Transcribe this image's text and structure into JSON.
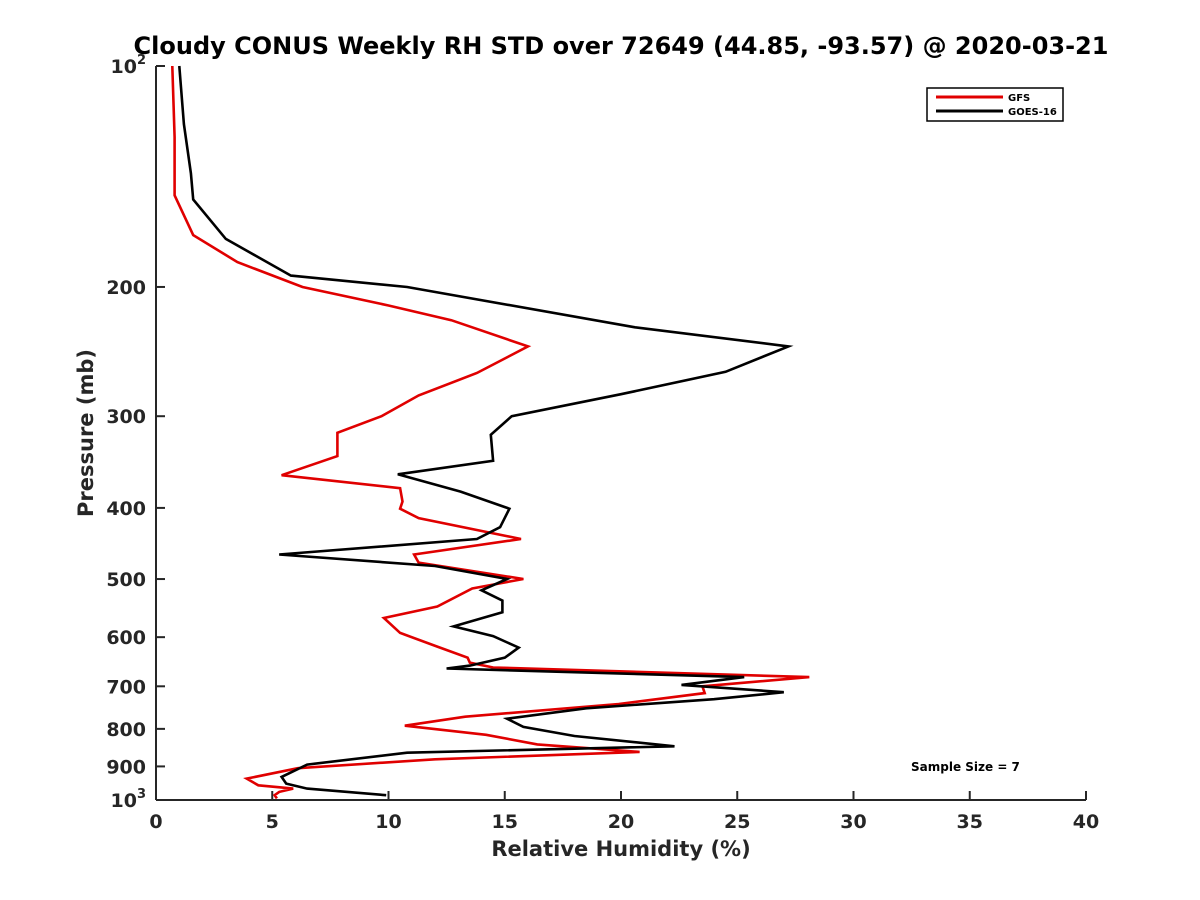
{
  "chart_data": {
    "type": "line",
    "title": "Cloudy CONUS Weekly RH STD over 72649 (44.85, -93.57) @ 2020-03-21",
    "xlabel": "Relative Humidity (%)",
    "ylabel": "Pressure (mb)",
    "xlim": [
      0,
      40
    ],
    "ylim": [
      100,
      1000
    ],
    "y_scale": "log",
    "y_reversed": true,
    "x_ticks": [
      "0",
      "5",
      "10",
      "15",
      "20",
      "25",
      "30",
      "35",
      "40"
    ],
    "y_ticks": [
      {
        "value": 100,
        "label": "10",
        "sup": "2"
      },
      {
        "value": 200,
        "label": "200",
        "sup": ""
      },
      {
        "value": 300,
        "label": "300",
        "sup": ""
      },
      {
        "value": 400,
        "label": "400",
        "sup": ""
      },
      {
        "value": 500,
        "label": "500",
        "sup": ""
      },
      {
        "value": 600,
        "label": "600",
        "sup": ""
      },
      {
        "value": 700,
        "label": "700",
        "sup": ""
      },
      {
        "value": 800,
        "label": "800",
        "sup": ""
      },
      {
        "value": 900,
        "label": "900",
        "sup": ""
      },
      {
        "value": 1000,
        "label": "10",
        "sup": "3"
      }
    ],
    "grid": false,
    "legend_position": "top-right",
    "annotation": "Sample Size = 7",
    "series": [
      {
        "name": "GFS",
        "color": "#e00000",
        "points": [
          [
            0.7,
            100
          ],
          [
            0.8,
            125
          ],
          [
            0.8,
            150
          ],
          [
            1.6,
            170
          ],
          [
            3.5,
            185
          ],
          [
            6.3,
            200
          ],
          [
            10,
            212
          ],
          [
            12.7,
            222
          ],
          [
            16,
            241
          ],
          [
            13.8,
            262
          ],
          [
            11.3,
            281
          ],
          [
            9.7,
            300
          ],
          [
            7.8,
            316
          ],
          [
            7.8,
            340
          ],
          [
            5.4,
            361
          ],
          [
            10.5,
            376
          ],
          [
            10.6,
            392
          ],
          [
            10.5,
            401
          ],
          [
            11.3,
            413
          ],
          [
            15.7,
            441
          ],
          [
            11.1,
            463
          ],
          [
            11.3,
            475
          ],
          [
            15.8,
            500
          ],
          [
            13.6,
            515
          ],
          [
            12.1,
            545
          ],
          [
            9.8,
            565
          ],
          [
            10.5,
            592
          ],
          [
            12.1,
            618
          ],
          [
            13.4,
            640
          ],
          [
            13.5,
            650
          ],
          [
            14.5,
            660
          ],
          [
            28.1,
            680
          ],
          [
            23.5,
            700
          ],
          [
            23.6,
            715
          ],
          [
            19.9,
            740
          ],
          [
            13.3,
            770
          ],
          [
            10.7,
            792
          ],
          [
            14.2,
            815
          ],
          [
            16.4,
            840
          ],
          [
            20.8,
            860
          ],
          [
            12,
            880
          ],
          [
            6.1,
            905
          ],
          [
            3.9,
            935
          ],
          [
            4.4,
            955
          ],
          [
            5.9,
            965
          ],
          [
            5.3,
            975
          ],
          [
            5.1,
            985
          ],
          [
            5.2,
            995
          ]
        ]
      },
      {
        "name": "GOES-16",
        "color": "#000000",
        "points": [
          [
            1.0,
            100
          ],
          [
            1.2,
            120
          ],
          [
            1.5,
            140
          ],
          [
            1.6,
            152
          ],
          [
            3.0,
            172
          ],
          [
            5.8,
            193
          ],
          [
            10.8,
            200
          ],
          [
            20.6,
            227
          ],
          [
            27.2,
            241
          ],
          [
            24.5,
            261
          ],
          [
            20,
            280
          ],
          [
            15.3,
            300
          ],
          [
            14.4,
            318
          ],
          [
            14.5,
            345
          ],
          [
            10.4,
            360
          ],
          [
            13.1,
            380
          ],
          [
            15.2,
            401
          ],
          [
            14.8,
            425
          ],
          [
            13.8,
            441
          ],
          [
            5.3,
            463
          ],
          [
            12,
            480
          ],
          [
            15.1,
            500
          ],
          [
            14.0,
            518
          ],
          [
            14.9,
            535
          ],
          [
            14.9,
            555
          ],
          [
            12.8,
            580
          ],
          [
            14.5,
            598
          ],
          [
            15.6,
            620
          ],
          [
            15,
            640
          ],
          [
            13.5,
            656
          ],
          [
            12.5,
            662
          ],
          [
            25.3,
            680
          ],
          [
            22.6,
            697
          ],
          [
            27,
            713
          ],
          [
            24,
            729
          ],
          [
            18.5,
            750
          ],
          [
            15.1,
            775
          ],
          [
            15.8,
            795
          ],
          [
            18,
            818
          ],
          [
            22.3,
            845
          ],
          [
            10.8,
            862
          ],
          [
            6.5,
            895
          ],
          [
            5.4,
            930
          ],
          [
            5.6,
            950
          ],
          [
            6.5,
            965
          ],
          [
            9.9,
            985
          ]
        ]
      }
    ]
  }
}
